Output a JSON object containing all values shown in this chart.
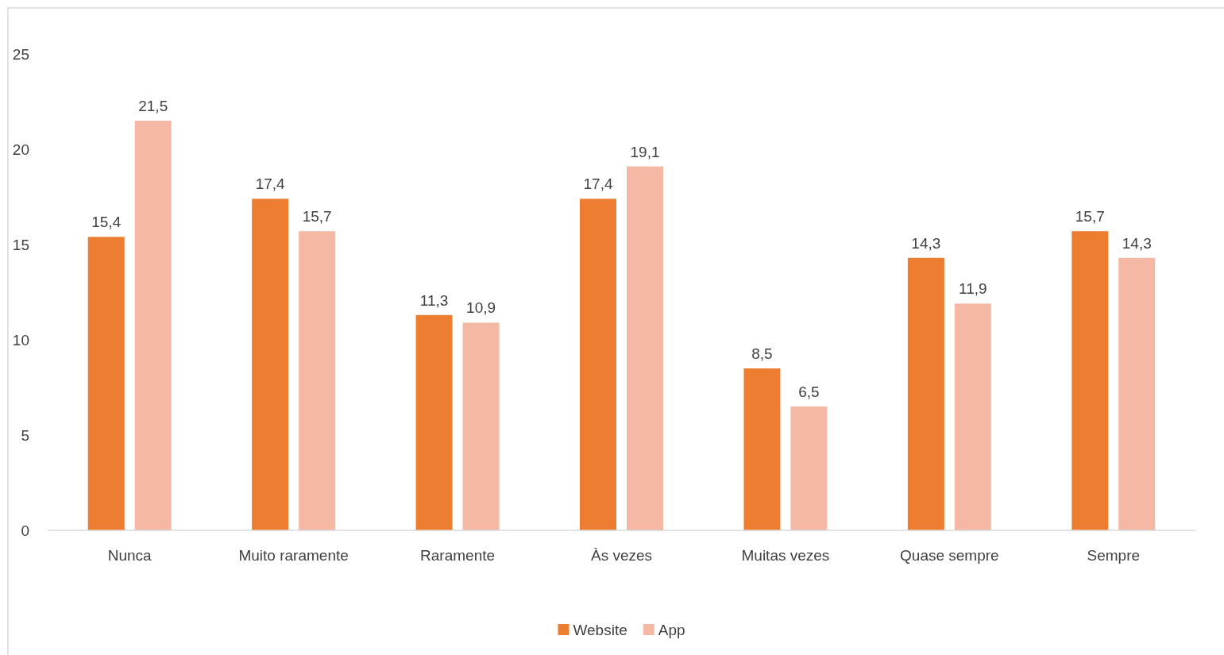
{
  "chart_data": {
    "type": "bar",
    "categories": [
      "Nunca",
      "Muito raramente",
      "Raramente",
      "Às vezes",
      "Muitas vezes",
      "Quase sempre",
      "Sempre"
    ],
    "series": [
      {
        "name": "Website",
        "color": "#ed7d31",
        "values": [
          15.4,
          17.4,
          11.3,
          17.4,
          8.5,
          14.3,
          15.7
        ],
        "value_labels": [
          "15,4",
          "17,4",
          "11,3",
          "17,4",
          "8,5",
          "14,3",
          "15,7"
        ]
      },
      {
        "name": "App",
        "color": "#f4b8a5",
        "values": [
          21.5,
          15.7,
          10.9,
          19.1,
          6.5,
          11.9,
          14.3
        ],
        "value_labels": [
          "21,5",
          "15,7",
          "10,9",
          "19,1",
          "6,5",
          "11,9",
          "14,3"
        ]
      }
    ],
    "ylim": [
      0,
      25
    ],
    "yticks": [
      0,
      5,
      10,
      15,
      20,
      25
    ],
    "legend": "bottom"
  }
}
